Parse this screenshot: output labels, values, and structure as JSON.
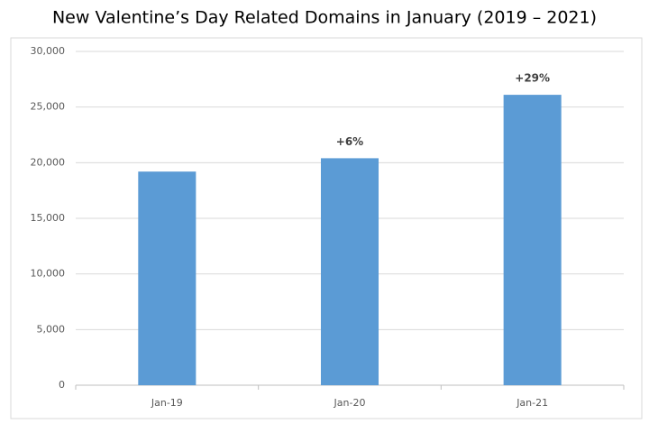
{
  "chart_data": {
    "type": "bar",
    "title": "New Valentine’s Day Related Domains in January (2019 – 2021)",
    "categories": [
      "Jan-19",
      "Jan-20",
      "Jan-21"
    ],
    "values": [
      19200,
      20400,
      26100
    ],
    "annotations": [
      null,
      "+6%",
      "+29%"
    ],
    "color": "#5b9bd5",
    "ylim": [
      0,
      30000
    ],
    "yticks": [
      0,
      {
        "value": 5000,
        "label": "5,000"
      },
      {
        "value": 10000,
        "label": "10,000"
      },
      {
        "value": 15000,
        "label": "15,000"
      },
      {
        "value": 20000,
        "label": "20,000"
      },
      {
        "value": 25000,
        "label": "25,000"
      },
      {
        "value": 30000,
        "label": "30,000"
      }
    ],
    "grid": true
  }
}
